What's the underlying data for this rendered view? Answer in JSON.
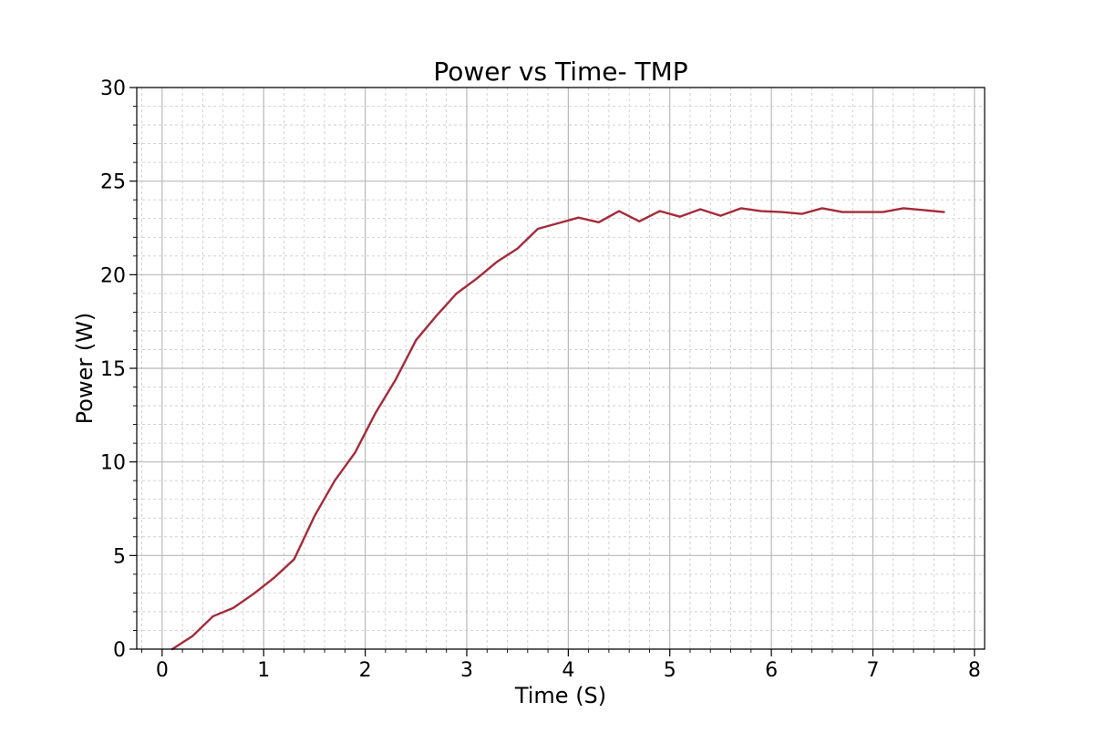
{
  "chart_data": {
    "type": "line",
    "title": "Power vs Time- TMP",
    "xlabel": "Time (S)",
    "ylabel": "Power (W)",
    "xlim": [
      -0.25,
      8.1
    ],
    "ylim": [
      0,
      30
    ],
    "x_ticks": [
      0,
      1,
      2,
      3,
      4,
      5,
      6,
      7,
      8
    ],
    "y_ticks": [
      0,
      5,
      10,
      15,
      20,
      25,
      30
    ],
    "grid": true,
    "line_color": "#a52a3a",
    "series": [
      {
        "x": [
          0.1,
          0.3,
          0.5,
          0.7,
          0.9,
          1.1,
          1.3,
          1.5,
          1.7,
          1.9,
          2.1,
          2.3,
          2.5,
          2.7,
          2.9,
          3.1,
          3.3,
          3.5,
          3.7,
          3.9,
          4.1,
          4.3,
          4.5,
          4.7,
          4.9,
          5.1,
          5.3,
          5.5,
          5.7,
          5.9,
          6.1,
          6.3,
          6.5,
          6.7,
          6.9,
          7.1,
          7.3,
          7.5,
          7.7
        ],
        "values": [
          0,
          0.7,
          1.75,
          2.2,
          2.95,
          3.8,
          4.8,
          7.1,
          9.0,
          10.5,
          12.6,
          14.4,
          16.5,
          17.8,
          19.0,
          19.8,
          20.7,
          21.4,
          22.45,
          22.75,
          23.05,
          22.8,
          23.4,
          22.85,
          23.4,
          23.1,
          23.5,
          23.15,
          23.55,
          23.4,
          23.35,
          23.25,
          23.55,
          23.35,
          23.35,
          23.35,
          23.55,
          23.45,
          23.35
        ]
      }
    ]
  }
}
